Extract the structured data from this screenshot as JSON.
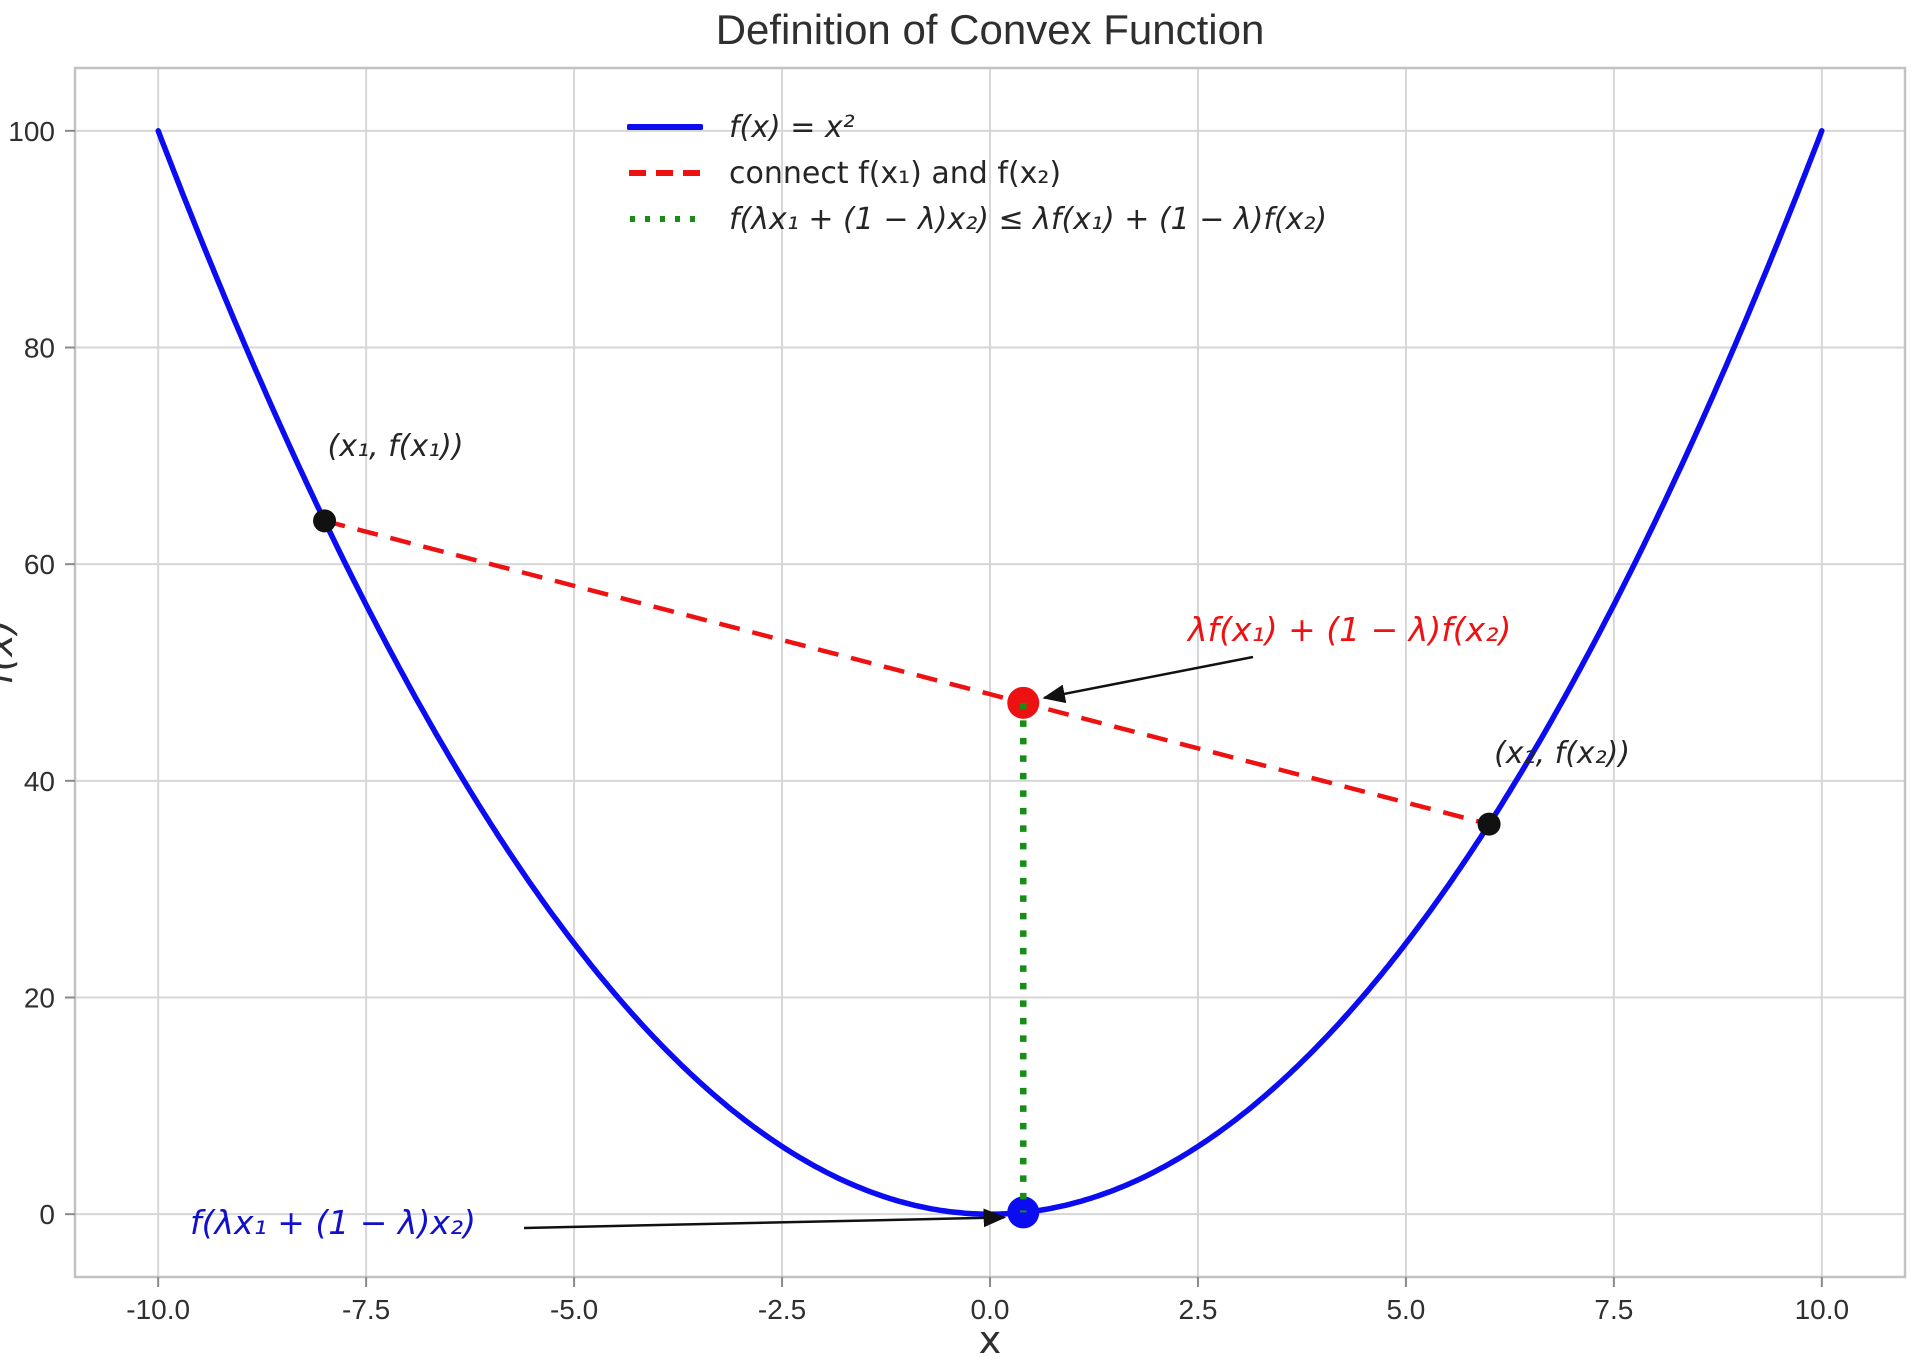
{
  "chart_data": {
    "type": "line",
    "title": "Definition of Convex Function",
    "xlabel": "x",
    "ylabel": "f(x)",
    "xlim": [
      -11,
      11
    ],
    "ylim": [
      -5.8,
      105.8
    ],
    "x_ticks": [
      -10,
      -7.5,
      -5,
      -2.5,
      0,
      2.5,
      5,
      7.5,
      10
    ],
    "x_tick_labels": [
      "-10.0",
      "-7.5",
      "-5.0",
      "-2.5",
      "0.0",
      "2.5",
      "5.0",
      "7.5",
      "10.0"
    ],
    "y_ticks": [
      0,
      20,
      40,
      60,
      80,
      100
    ],
    "y_tick_labels": [
      "0",
      "20",
      "40",
      "60",
      "80",
      "100"
    ],
    "grid": true,
    "function": "f(x) = x^2",
    "curve": {
      "name": "f(x) = x²",
      "color": "#0c0cf2",
      "x_min": -10,
      "x_max": 10
    },
    "x1": -8,
    "x2": 6,
    "f_x1": 64,
    "f_x2": 36,
    "lambda": 0.4,
    "chord": {
      "from": [
        -8,
        64
      ],
      "to": [
        6,
        36
      ],
      "color": "#ee1111",
      "style": "dashed"
    },
    "vertical_segment": {
      "from": [
        0.4,
        47.2
      ],
      "to": [
        0.4,
        0.16
      ],
      "color": "#168e16",
      "style": "dotted"
    },
    "key_points": [
      {
        "name": "point-x1",
        "x": -8,
        "y": 64,
        "color": "#111111",
        "radius": 11.5
      },
      {
        "name": "point-x2",
        "x": 6,
        "y": 36,
        "color": "#111111",
        "radius": 11.5
      },
      {
        "name": "chord-point",
        "x": 0.4,
        "y": 47.2,
        "color": "#ee1111",
        "radius": 16
      },
      {
        "name": "curve-point",
        "x": 0.4,
        "y": 0.16,
        "color": "#0c0cf2",
        "radius": 16
      }
    ],
    "legend": {
      "position": "upper center-left",
      "frame": false,
      "entries": [
        {
          "label": "f(x) = x²",
          "color": "#0c0cf2",
          "style": "solid"
        },
        {
          "label": "connect f(x₁) and f(x₂)",
          "color": "#ee1111",
          "style": "dashed"
        },
        {
          "label": "f(λx₁ + (1 − λ)x₂) ≤ λf(x₁) + (1 − λ)f(x₂)",
          "color": "#168e16",
          "style": "dotted"
        }
      ]
    }
  },
  "annotations": {
    "p1_label": "(x₁, f(x₁))",
    "p2_label": "(x₂, f(x₂))",
    "chord_value": {
      "text": "λf(x₁) + (1 − λ)f(x₂)",
      "color": "#ee1111"
    },
    "function_value": {
      "text": "f(λx₁ + (1 − λ)x₂)",
      "color": "#1111cc"
    }
  },
  "colors": {
    "curve_blue": "#0c0cf2",
    "chord_red": "#ee1111",
    "segment_green": "#168e16",
    "grid": "#d6d6d6",
    "spine": "#c2c2c2",
    "tick": "#8a8a8a",
    "text": "#2f2f2f",
    "arrow": "#111111"
  }
}
